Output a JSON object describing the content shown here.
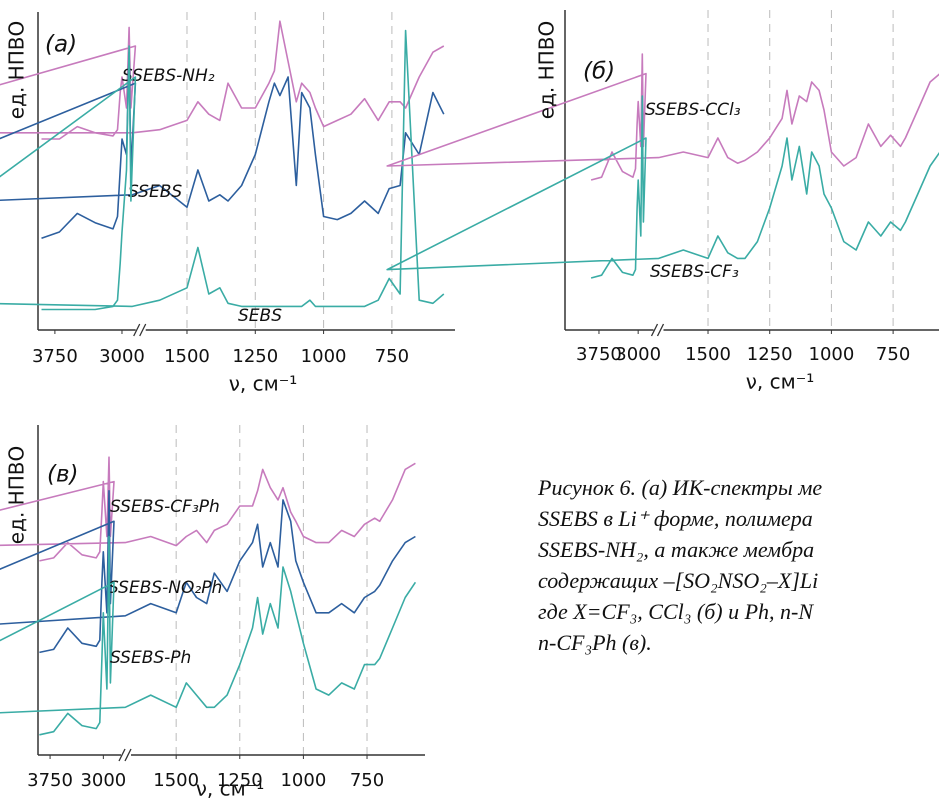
{
  "chart_data": [
    {
      "type": "line",
      "label": "(а)",
      "ylabel": "ед. НПВО",
      "xlabel": "ν, см⁻¹",
      "xlim": [
        3950,
        530
      ],
      "axis_break": [
        2850,
        1650
      ],
      "ylim": [
        0,
        100
      ],
      "xticks": [
        3750,
        3000,
        1500,
        1250,
        1000,
        750
      ],
      "x": [
        3900,
        3700,
        3500,
        3300,
        3100,
        3050,
        3020,
        3000,
        2950,
        2920,
        2900,
        2850,
        2800,
        1700,
        1600,
        1500,
        1460,
        1420,
        1380,
        1350,
        1300,
        1250,
        1200,
        1180,
        1160,
        1130,
        1100,
        1080,
        1050,
        1030,
        1000,
        950,
        900,
        850,
        800,
        760,
        720,
        700,
        650,
        600,
        560
      ],
      "series": [
        {
          "name": "SSEBS-NH₂",
          "color": "#c77bbd",
          "values": [
            60,
            60,
            64,
            62,
            61,
            63,
            75,
            80,
            70,
            96,
            70,
            90,
            62,
            62,
            63,
            66,
            72,
            68,
            66,
            78,
            70,
            70,
            78,
            82,
            98,
            85,
            72,
            78,
            75,
            70,
            64,
            66,
            68,
            73,
            66,
            72,
            72,
            70,
            80,
            88,
            90
          ]
        },
        {
          "name": "SSEBS",
          "color": "#2d5f9e",
          "values": [
            28,
            30,
            36,
            33,
            31,
            35,
            50,
            60,
            55,
            88,
            50,
            78,
            38,
            42,
            45,
            38,
            50,
            40,
            42,
            40,
            45,
            55,
            72,
            78,
            74,
            80,
            45,
            75,
            70,
            55,
            35,
            34,
            36,
            40,
            36,
            44,
            45,
            62,
            55,
            75,
            68
          ]
        },
        {
          "name": "SEBS",
          "color": "#3aaca5",
          "values": [
            5,
            5,
            5,
            5,
            6,
            8,
            20,
            30,
            50,
            90,
            40,
            80,
            8,
            6,
            8,
            12,
            25,
            10,
            12,
            7,
            6,
            6,
            6,
            6,
            6,
            6,
            6,
            6,
            8,
            6,
            6,
            6,
            6,
            6,
            8,
            15,
            10,
            95,
            8,
            7,
            10
          ]
        }
      ]
    },
    {
      "type": "line",
      "label": "(б)",
      "ylabel": "ед. НПВО",
      "xlabel": "ν, см⁻¹",
      "xlim": [
        4400,
        560
      ],
      "axis_break": [
        2850,
        1650
      ],
      "ylim": [
        0,
        100
      ],
      "xticks": [
        3750,
        3000,
        1500,
        1250,
        1000,
        750
      ],
      "x": [
        3900,
        3700,
        3500,
        3300,
        3100,
        3050,
        3020,
        3000,
        2950,
        2920,
        2900,
        2850,
        2800,
        1700,
        1600,
        1500,
        1460,
        1420,
        1380,
        1350,
        1300,
        1250,
        1200,
        1180,
        1160,
        1130,
        1100,
        1080,
        1050,
        1030,
        1000,
        950,
        900,
        850,
        800,
        760,
        720,
        700,
        650,
        600,
        560
      ],
      "series": [
        {
          "name": "SSEBS-CCl₃",
          "color": "#c77bbd",
          "values": [
            50,
            51,
            60,
            53,
            51,
            54,
            70,
            78,
            62,
            95,
            62,
            88,
            55,
            58,
            60,
            58,
            65,
            58,
            56,
            57,
            60,
            65,
            72,
            82,
            70,
            80,
            78,
            85,
            82,
            75,
            60,
            55,
            58,
            70,
            62,
            66,
            62,
            65,
            75,
            85,
            88
          ]
        },
        {
          "name": "SSEBS-CF₃",
          "color": "#3aaca5",
          "values": [
            15,
            16,
            22,
            17,
            16,
            18,
            40,
            50,
            30,
            80,
            35,
            65,
            18,
            22,
            25,
            22,
            30,
            24,
            22,
            22,
            28,
            40,
            55,
            65,
            50,
            62,
            45,
            60,
            55,
            45,
            40,
            28,
            25,
            35,
            30,
            35,
            32,
            35,
            45,
            55,
            60
          ]
        }
      ]
    },
    {
      "type": "line",
      "label": "(в)",
      "ylabel": "ед. НПВО",
      "xlabel": "ν, см⁻¹",
      "xlim": [
        3920,
        530
      ],
      "axis_break": [
        2850,
        1650
      ],
      "ylim": [
        0,
        100
      ],
      "xticks": [
        3750,
        3000,
        1500,
        1250,
        1000,
        750
      ],
      "x": [
        3900,
        3700,
        3500,
        3300,
        3100,
        3050,
        3020,
        3000,
        2950,
        2920,
        2900,
        2850,
        2800,
        1700,
        1600,
        1500,
        1460,
        1420,
        1380,
        1350,
        1300,
        1250,
        1200,
        1180,
        1160,
        1130,
        1100,
        1080,
        1050,
        1030,
        1000,
        950,
        900,
        850,
        800,
        760,
        720,
        700,
        650,
        600,
        560
      ],
      "series": [
        {
          "name": "SSEBS-CF₃Ph",
          "color": "#c77bbd",
          "values": [
            62,
            63,
            68,
            64,
            63,
            65,
            78,
            88,
            70,
            96,
            70,
            88,
            66,
            68,
            70,
            67,
            70,
            72,
            68,
            72,
            74,
            80,
            80,
            85,
            92,
            86,
            82,
            86,
            78,
            75,
            70,
            68,
            68,
            72,
            70,
            74,
            76,
            75,
            82,
            92,
            94
          ]
        },
        {
          "name": "SSEBS-NO₂Ph",
          "color": "#2d5f9e",
          "values": [
            32,
            33,
            40,
            35,
            34,
            36,
            55,
            65,
            45,
            85,
            48,
            75,
            38,
            44,
            48,
            45,
            55,
            50,
            48,
            58,
            52,
            62,
            68,
            74,
            60,
            68,
            60,
            82,
            75,
            62,
            55,
            45,
            45,
            48,
            45,
            50,
            52,
            54,
            62,
            68,
            70
          ]
        },
        {
          "name": "SSEBS-Ph",
          "color": "#3aaca5",
          "values": [
            5,
            6,
            12,
            8,
            7,
            9,
            30,
            45,
            20,
            70,
            22,
            55,
            10,
            14,
            18,
            14,
            22,
            18,
            14,
            14,
            18,
            28,
            40,
            50,
            38,
            48,
            40,
            60,
            52,
            45,
            35,
            20,
            18,
            22,
            20,
            28,
            28,
            30,
            40,
            50,
            55
          ]
        }
      ]
    }
  ],
  "caption": {
    "lines": [
      "Рисунок 6. (а) ИК-спектры ме",
      "SSEBS в Li⁺ форме, полимера",
      "SSEBS-NH₂, а также мембра",
      "содержащих –[SO₂NSO₂–X]Li",
      "где X=CF₃, CCl₃ (б) и Ph, n-N",
      "n-CF₃Ph (в)."
    ]
  }
}
